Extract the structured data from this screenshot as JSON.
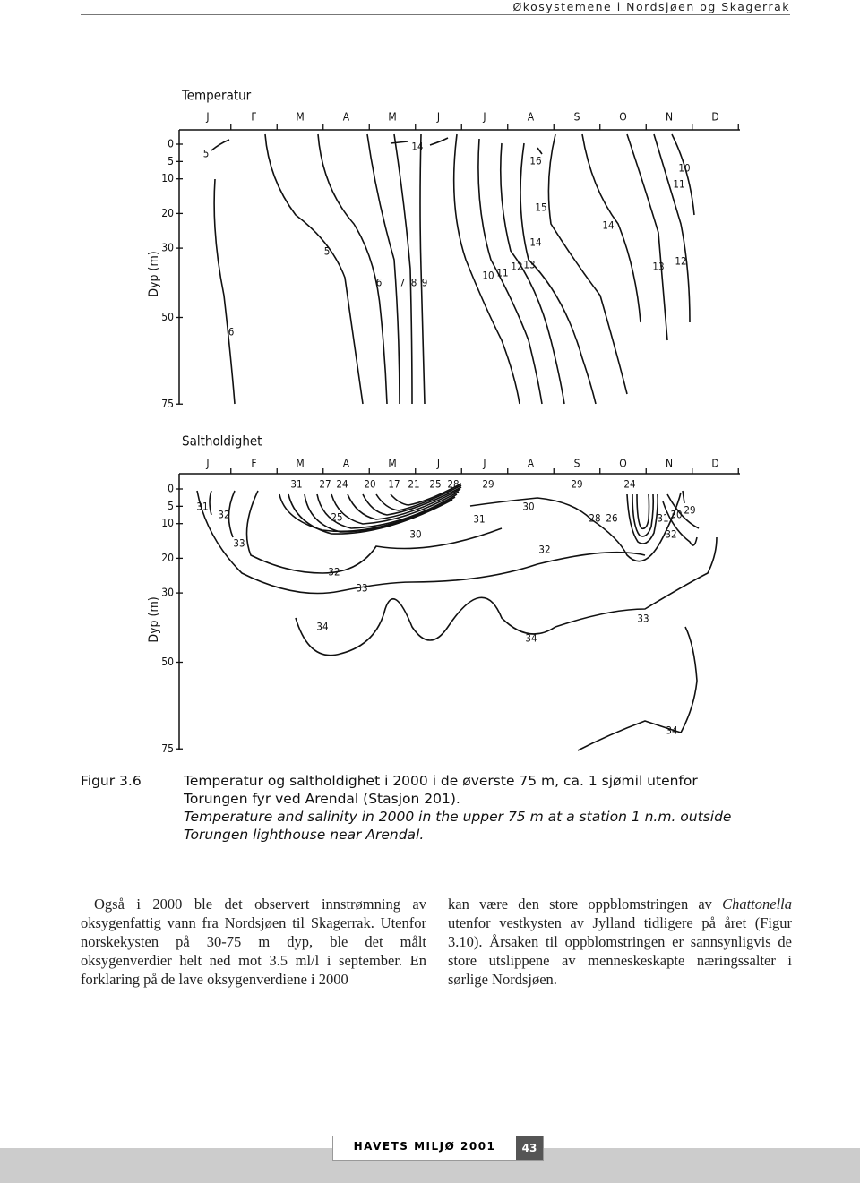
{
  "header": {
    "title": "Økosystemene i Nordsjøen og Skagerrak"
  },
  "figure": {
    "panels": [
      {
        "title": "Temperatur",
        "y_label": "Dyp (m)",
        "months": [
          "J",
          "F",
          "M",
          "A",
          "M",
          "J",
          "J",
          "A",
          "S",
          "O",
          "N",
          "D"
        ],
        "depth_ticks": [
          0,
          5,
          10,
          20,
          30,
          50,
          75
        ],
        "contour_labels": [
          5,
          14,
          16,
          10,
          11,
          15,
          14,
          5,
          14,
          13,
          12,
          12,
          13,
          11,
          10,
          6,
          7,
          8,
          9,
          6
        ]
      },
      {
        "title": "Saltholdighet",
        "y_label": "Dyp (m)",
        "months": [
          "J",
          "F",
          "M",
          "A",
          "M",
          "J",
          "J",
          "A",
          "S",
          "O",
          "N",
          "D"
        ],
        "depth_ticks": [
          0,
          5,
          10,
          20,
          30,
          50,
          75
        ],
        "contour_labels": [
          31,
          27,
          24,
          20,
          17,
          21,
          25,
          28,
          29,
          29,
          24,
          30,
          31,
          32,
          25,
          31,
          28,
          26,
          31,
          30,
          29,
          30,
          32,
          33,
          32,
          32,
          33,
          33,
          34,
          34,
          34
        ]
      }
    ],
    "caption": {
      "label": "Figur 3.6",
      "text": "Temperatur og saltholdighet i 2000 i de øverste 75 m, ca. 1 sjømil utenfor Torungen fyr ved Arendal (Stasjon 201).",
      "text_en": "Temperature and salinity in 2000 in the upper 75 m at a station 1 n.m. outside Torungen lighthouse near Arendal."
    }
  },
  "body": {
    "left": "Også i 2000 ble det observert innstrømning av oksygenfattig vann fra Nordsjøen til Skagerrak. Utenfor norskekysten på 30-75 m dyp, ble det målt oksygenverdier helt ned mot 3.5 ml/l i september. En forklaring på de lave oksygenverdiene i 2000",
    "right_before": "kan være den store oppblomstringen av ",
    "right_italic": "Chattonella",
    "right_after": " utenfor vestkysten av Jylland tidligere på året (Figur 3.10). Årsaken til oppblomstringen er sannsynligvis de store utslippene av menneskeskapte næringssalter i sørlige Nordsjøen."
  },
  "footer": {
    "journal": "HAVETS MILJØ 2001",
    "page": "43"
  }
}
